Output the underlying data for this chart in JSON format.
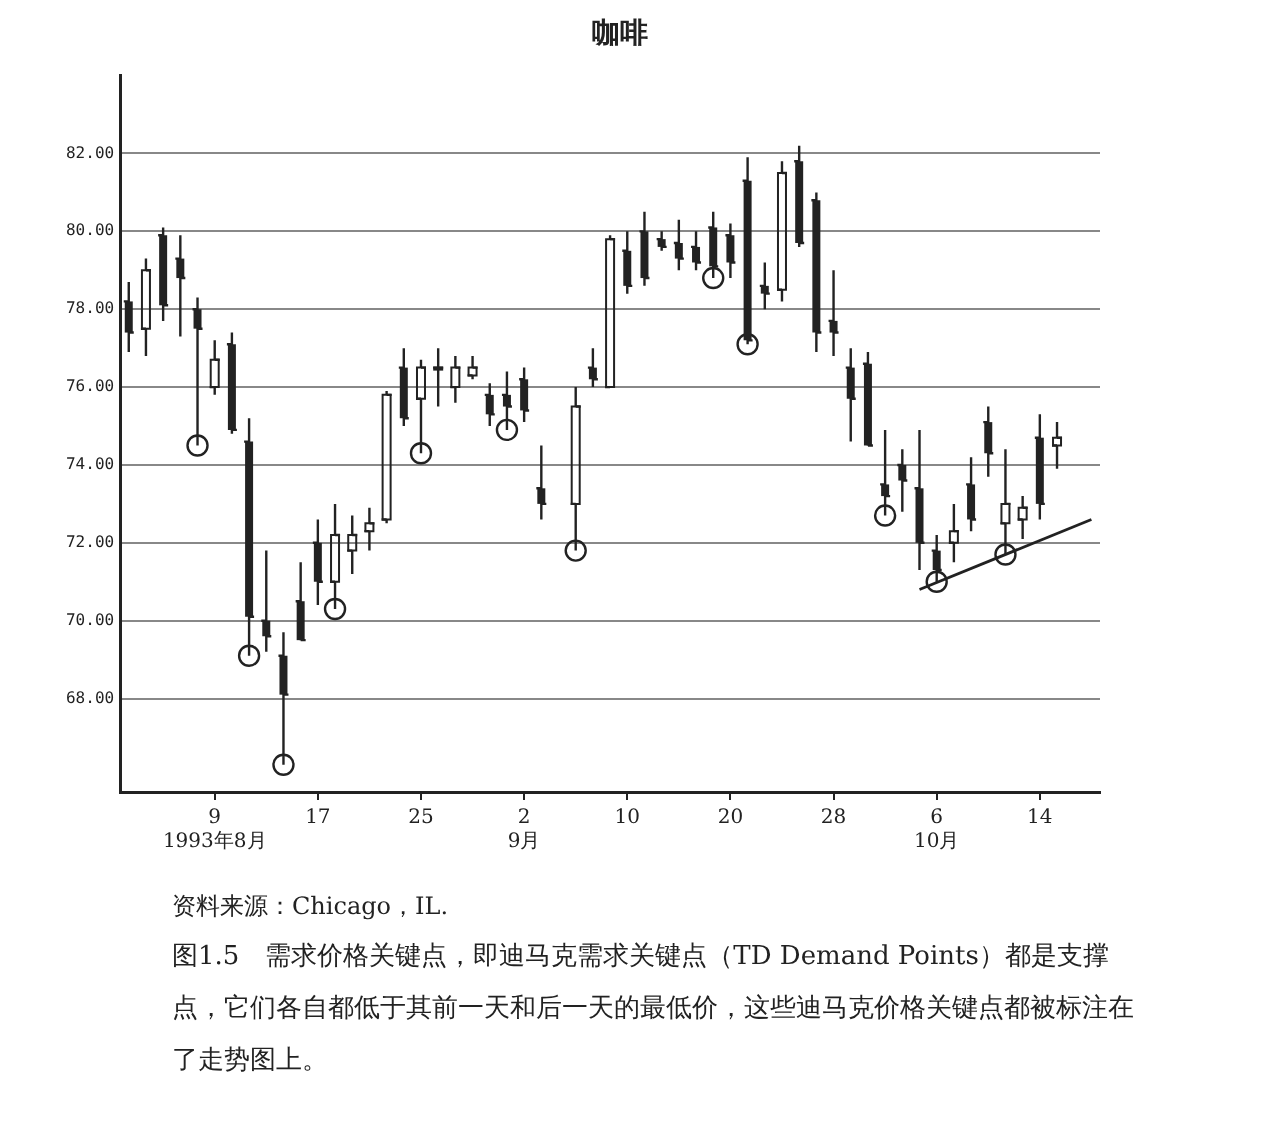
{
  "chart_data": {
    "type": "candlestick",
    "title": "咖啡",
    "color": "#222222",
    "categories": [
      null,
      null,
      null,
      null,
      null,
      "9\n1993年8月",
      null,
      null,
      null,
      null,
      null,
      "17",
      null,
      null,
      null,
      null,
      null,
      "25",
      null,
      null,
      null,
      null,
      null,
      "2\n9月",
      null,
      null,
      null,
      null,
      null,
      "10",
      null,
      null,
      null,
      null,
      null,
      "20",
      null,
      null,
      null,
      null,
      null,
      "28",
      null,
      null,
      null,
      null,
      null,
      "6\n10月",
      null,
      null,
      null,
      null,
      null,
      "14",
      null,
      null,
      null
    ],
    "ohlc": [
      [
        78.2,
        78.7,
        76.9,
        77.4
      ],
      [
        77.5,
        79.3,
        76.8,
        79.0
      ],
      [
        79.9,
        80.1,
        77.7,
        78.1
      ],
      [
        79.3,
        79.9,
        77.3,
        78.8
      ],
      [
        78.0,
        78.3,
        74.5,
        77.5
      ],
      [
        76.0,
        77.2,
        75.8,
        76.7
      ],
      [
        77.1,
        77.4,
        74.8,
        74.9
      ],
      [
        74.6,
        75.2,
        69.1,
        70.1
      ],
      [
        70.0,
        71.8,
        69.2,
        69.6
      ],
      [
        69.1,
        69.7,
        66.3,
        68.1
      ],
      [
        70.5,
        71.5,
        69.5,
        69.5
      ],
      [
        72.0,
        72.6,
        70.4,
        71.0
      ],
      [
        71.0,
        73.0,
        70.3,
        72.2
      ],
      [
        71.8,
        72.7,
        71.2,
        72.2
      ],
      [
        72.3,
        72.9,
        71.8,
        72.5
      ],
      [
        72.6,
        75.9,
        72.5,
        75.8
      ],
      [
        76.5,
        77.0,
        75.0,
        75.2
      ],
      [
        75.7,
        76.7,
        74.3,
        76.5
      ],
      [
        76.5,
        77.0,
        75.5,
        76.5
      ],
      [
        76.0,
        76.8,
        75.6,
        76.5
      ],
      [
        76.3,
        76.8,
        76.2,
        76.5
      ],
      [
        75.8,
        76.1,
        75.0,
        75.3
      ],
      [
        75.8,
        76.4,
        74.9,
        75.5
      ],
      [
        76.2,
        76.5,
        75.1,
        75.4
      ],
      [
        73.4,
        74.5,
        72.6,
        73.0
      ],
      null,
      [
        73.0,
        76.0,
        71.8,
        75.5
      ],
      [
        76.5,
        77.0,
        76.0,
        76.2
      ],
      [
        76.0,
        79.9,
        76.0,
        79.8
      ],
      [
        79.5,
        80.0,
        78.4,
        78.6
      ],
      [
        80.0,
        80.5,
        78.6,
        78.8
      ],
      [
        79.8,
        80.0,
        79.5,
        79.6
      ],
      [
        79.7,
        80.3,
        79.0,
        79.3
      ],
      [
        79.6,
        80.0,
        79.0,
        79.2
      ],
      [
        80.1,
        80.5,
        78.8,
        79.1
      ],
      [
        79.9,
        80.2,
        78.8,
        79.2
      ],
      [
        81.3,
        81.9,
        77.1,
        77.2
      ],
      [
        78.6,
        79.2,
        78.0,
        78.4
      ],
      [
        78.5,
        81.8,
        78.2,
        81.5
      ],
      [
        81.8,
        82.2,
        79.6,
        79.7
      ],
      [
        80.8,
        81.0,
        76.9,
        77.4
      ],
      [
        77.7,
        79.0,
        76.8,
        77.4
      ],
      [
        76.5,
        77.0,
        74.6,
        75.7
      ],
      [
        76.6,
        76.9,
        74.5,
        74.5
      ],
      [
        73.5,
        74.9,
        72.7,
        73.2
      ],
      [
        74.0,
        74.4,
        72.8,
        73.6
      ],
      [
        73.4,
        74.9,
        71.3,
        72.0
      ],
      [
        71.8,
        72.2,
        71.0,
        71.3
      ],
      [
        72.0,
        73.0,
        71.5,
        72.3
      ],
      [
        73.5,
        74.2,
        72.3,
        72.6
      ],
      [
        75.1,
        75.5,
        73.7,
        74.3
      ],
      [
        72.5,
        74.4,
        71.7,
        73.0
      ],
      [
        72.6,
        73.2,
        72.1,
        72.9
      ],
      [
        74.7,
        75.3,
        72.6,
        73.0
      ],
      [
        74.5,
        75.1,
        73.9,
        74.7
      ],
      null,
      null
    ],
    "series": [
      {
        "type": "scatter",
        "marker": "circle",
        "color": "#222222",
        "values": [
          null,
          null,
          null,
          null,
          74.5,
          null,
          null,
          69.1,
          null,
          66.3,
          null,
          null,
          70.3,
          null,
          null,
          null,
          null,
          74.3,
          null,
          null,
          null,
          null,
          74.9,
          null,
          null,
          null,
          71.8,
          null,
          null,
          null,
          null,
          null,
          null,
          null,
          78.8,
          null,
          77.1,
          null,
          null,
          null,
          null,
          null,
          null,
          null,
          72.7,
          null,
          null,
          71.0,
          null,
          null,
          null,
          71.7,
          null,
          null,
          null,
          null,
          null
        ]
      },
      {
        "type": "line",
        "color": "#222222",
        "values": [
          null,
          null,
          null,
          null,
          null,
          null,
          null,
          null,
          null,
          null,
          null,
          null,
          null,
          null,
          null,
          null,
          null,
          null,
          null,
          null,
          null,
          null,
          null,
          null,
          null,
          null,
          null,
          null,
          null,
          null,
          null,
          null,
          null,
          null,
          null,
          null,
          null,
          null,
          null,
          null,
          null,
          null,
          null,
          null,
          null,
          null,
          70.8,
          null,
          null,
          null,
          null,
          null,
          null,
          null,
          null,
          null,
          72.6
        ]
      }
    ],
    "ylim": [
      65.6,
      84
    ],
    "yticks": [
      {
        "value": 68,
        "label": "68.00"
      },
      {
        "value": 70,
        "label": "70.00"
      },
      {
        "value": 72,
        "label": "72.00"
      },
      {
        "value": 74,
        "label": "74.00"
      },
      {
        "value": 76,
        "label": "76.00"
      },
      {
        "value": 78,
        "label": "78.00"
      },
      {
        "value": 80,
        "label": "80.00"
      },
      {
        "value": 82,
        "label": "82.00"
      }
    ],
    "grid": "y",
    "annotations": [
      "资料来源：Chicago，IL.",
      "图1.5　需求价格关键点，即迪马克需求关键点（TD Demand Points）都是支撑点，它们各自都低于其前一天和后一天的最低价，这些迪马克价格关键点都被标注在了走势图上。"
    ]
  }
}
